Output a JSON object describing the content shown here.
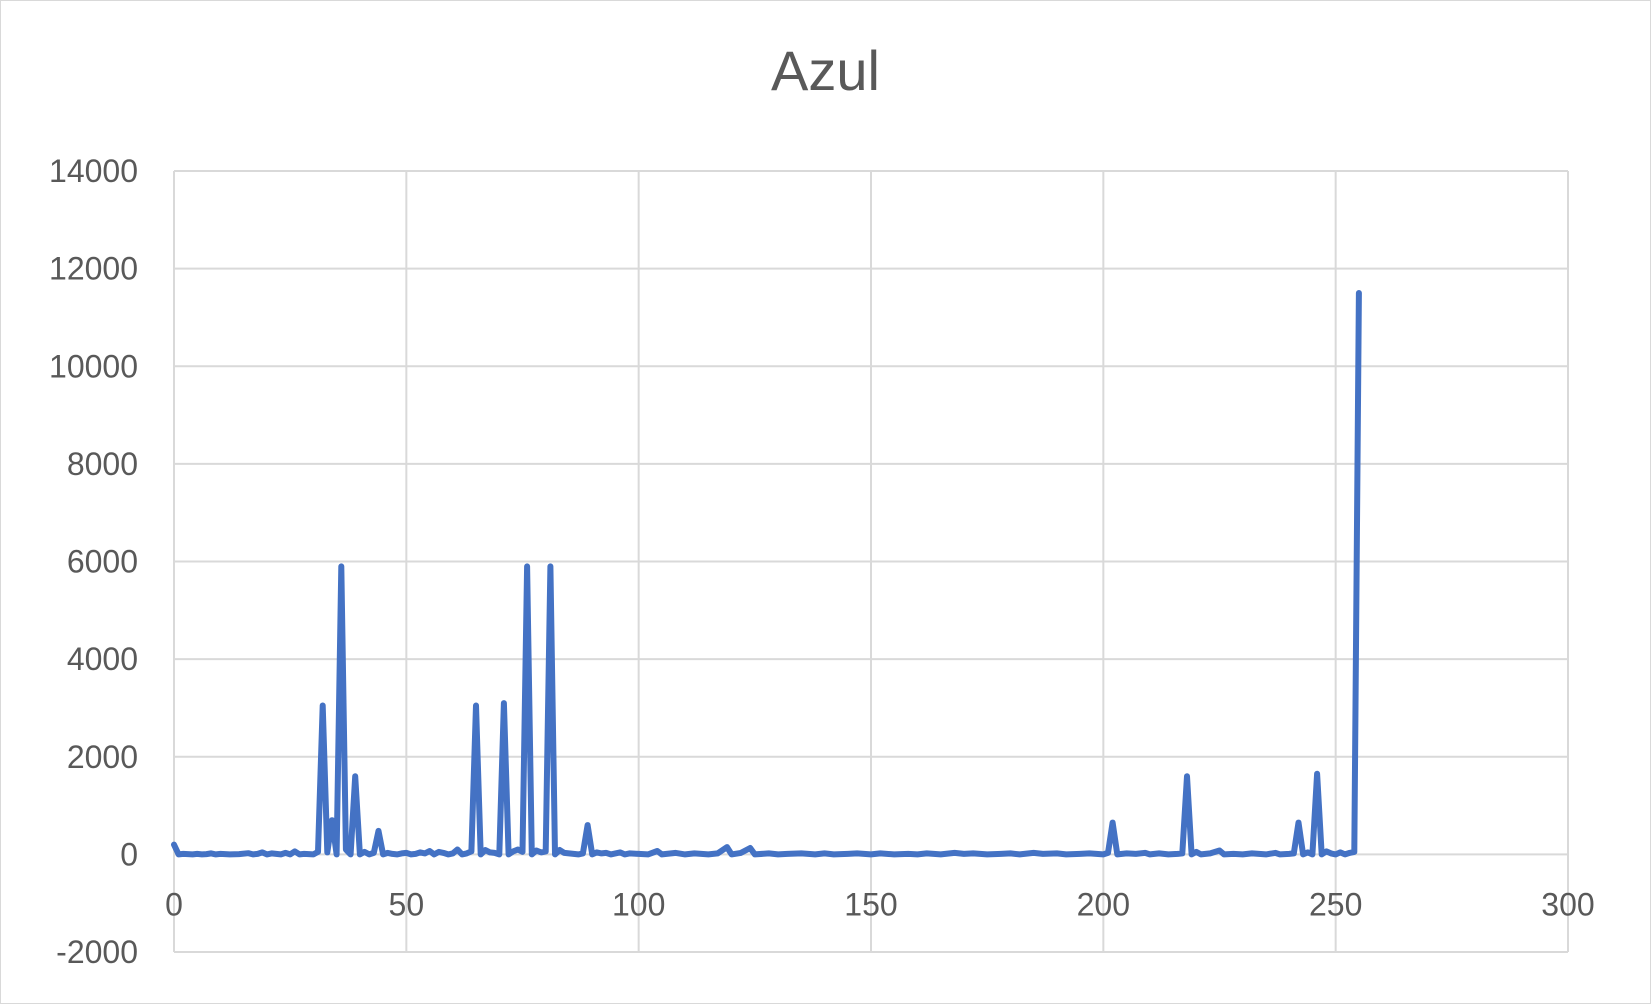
{
  "chart_data": {
    "type": "line",
    "title": "Azul",
    "xlabel": "",
    "ylabel": "",
    "xlim": [
      0,
      300
    ],
    "ylim": [
      -2000,
      14000
    ],
    "x_ticks": [
      0,
      50,
      100,
      150,
      200,
      250,
      300
    ],
    "y_ticks": [
      -2000,
      0,
      2000,
      4000,
      6000,
      8000,
      10000,
      12000,
      14000
    ],
    "grid": true,
    "legend": "none",
    "line_color": "#4472c4",
    "series": [
      {
        "points": [
          [
            0,
            200
          ],
          [
            1,
            0
          ],
          [
            2,
            10
          ],
          [
            3,
            5
          ],
          [
            4,
            0
          ],
          [
            5,
            10
          ],
          [
            6,
            0
          ],
          [
            7,
            5
          ],
          [
            8,
            20
          ],
          [
            9,
            0
          ],
          [
            10,
            10
          ],
          [
            12,
            0
          ],
          [
            14,
            5
          ],
          [
            16,
            25
          ],
          [
            17,
            0
          ],
          [
            18,
            10
          ],
          [
            19,
            40
          ],
          [
            20,
            0
          ],
          [
            21,
            20
          ],
          [
            22,
            10
          ],
          [
            23,
            0
          ],
          [
            24,
            30
          ],
          [
            25,
            0
          ],
          [
            26,
            60
          ],
          [
            27,
            0
          ],
          [
            28,
            10
          ],
          [
            29,
            5
          ],
          [
            30,
            0
          ],
          [
            31,
            50
          ],
          [
            32,
            3050
          ],
          [
            33,
            40
          ],
          [
            34,
            700
          ],
          [
            35,
            0
          ],
          [
            36,
            5900
          ],
          [
            37,
            100
          ],
          [
            38,
            0
          ],
          [
            39,
            1600
          ],
          [
            40,
            0
          ],
          [
            41,
            50
          ],
          [
            42,
            0
          ],
          [
            43,
            30
          ],
          [
            44,
            480
          ],
          [
            45,
            0
          ],
          [
            46,
            30
          ],
          [
            47,
            10
          ],
          [
            48,
            0
          ],
          [
            49,
            20
          ],
          [
            50,
            30
          ],
          [
            51,
            0
          ],
          [
            52,
            10
          ],
          [
            53,
            40
          ],
          [
            54,
            20
          ],
          [
            55,
            70
          ],
          [
            56,
            0
          ],
          [
            57,
            50
          ],
          [
            58,
            30
          ],
          [
            59,
            0
          ],
          [
            60,
            20
          ],
          [
            61,
            100
          ],
          [
            62,
            0
          ],
          [
            63,
            20
          ],
          [
            64,
            60
          ],
          [
            65,
            3050
          ],
          [
            66,
            0
          ],
          [
            67,
            90
          ],
          [
            68,
            40
          ],
          [
            69,
            30
          ],
          [
            70,
            0
          ],
          [
            71,
            3100
          ],
          [
            72,
            0
          ],
          [
            73,
            60
          ],
          [
            74,
            100
          ],
          [
            75,
            50
          ],
          [
            76,
            5900
          ],
          [
            77,
            0
          ],
          [
            78,
            80
          ],
          [
            79,
            40
          ],
          [
            80,
            60
          ],
          [
            81,
            5900
          ],
          [
            82,
            0
          ],
          [
            83,
            90
          ],
          [
            84,
            30
          ],
          [
            85,
            20
          ],
          [
            86,
            10
          ],
          [
            87,
            0
          ],
          [
            88,
            20
          ],
          [
            89,
            600
          ],
          [
            90,
            0
          ],
          [
            91,
            40
          ],
          [
            92,
            20
          ],
          [
            93,
            30
          ],
          [
            94,
            0
          ],
          [
            95,
            20
          ],
          [
            96,
            40
          ],
          [
            97,
            0
          ],
          [
            98,
            20
          ],
          [
            100,
            10
          ],
          [
            102,
            0
          ],
          [
            104,
            70
          ],
          [
            105,
            0
          ],
          [
            107,
            20
          ],
          [
            108,
            30
          ],
          [
            110,
            0
          ],
          [
            112,
            20
          ],
          [
            115,
            0
          ],
          [
            117,
            20
          ],
          [
            119,
            150
          ],
          [
            120,
            0
          ],
          [
            122,
            30
          ],
          [
            124,
            130
          ],
          [
            125,
            0
          ],
          [
            128,
            20
          ],
          [
            130,
            0
          ],
          [
            132,
            10
          ],
          [
            135,
            20
          ],
          [
            138,
            0
          ],
          [
            140,
            20
          ],
          [
            142,
            0
          ],
          [
            145,
            10
          ],
          [
            147,
            20
          ],
          [
            150,
            0
          ],
          [
            152,
            20
          ],
          [
            155,
            0
          ],
          [
            158,
            10
          ],
          [
            160,
            0
          ],
          [
            162,
            20
          ],
          [
            165,
            0
          ],
          [
            168,
            30
          ],
          [
            170,
            10
          ],
          [
            172,
            20
          ],
          [
            175,
            0
          ],
          [
            178,
            10
          ],
          [
            180,
            20
          ],
          [
            182,
            0
          ],
          [
            185,
            30
          ],
          [
            187,
            10
          ],
          [
            190,
            20
          ],
          [
            192,
            0
          ],
          [
            195,
            10
          ],
          [
            197,
            20
          ],
          [
            200,
            0
          ],
          [
            201,
            30
          ],
          [
            202,
            650
          ],
          [
            203,
            0
          ],
          [
            205,
            20
          ],
          [
            207,
            10
          ],
          [
            209,
            30
          ],
          [
            210,
            0
          ],
          [
            212,
            20
          ],
          [
            214,
            0
          ],
          [
            216,
            10
          ],
          [
            217,
            20
          ],
          [
            218,
            1600
          ],
          [
            219,
            0
          ],
          [
            220,
            50
          ],
          [
            221,
            0
          ],
          [
            223,
            20
          ],
          [
            225,
            80
          ],
          [
            226,
            0
          ],
          [
            228,
            10
          ],
          [
            230,
            0
          ],
          [
            232,
            20
          ],
          [
            235,
            0
          ],
          [
            237,
            30
          ],
          [
            238,
            0
          ],
          [
            240,
            10
          ],
          [
            241,
            20
          ],
          [
            242,
            650
          ],
          [
            243,
            0
          ],
          [
            244,
            40
          ],
          [
            245,
            0
          ],
          [
            246,
            1650
          ],
          [
            247,
            0
          ],
          [
            248,
            60
          ],
          [
            249,
            20
          ],
          [
            250,
            0
          ],
          [
            251,
            40
          ],
          [
            252,
            0
          ],
          [
            253,
            30
          ],
          [
            254,
            50
          ],
          [
            255,
            11500
          ]
        ]
      }
    ]
  }
}
